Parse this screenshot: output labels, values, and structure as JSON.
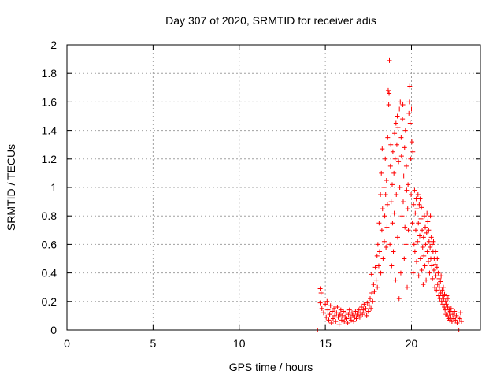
{
  "chart_data": {
    "type": "scatter",
    "title": "Day 307 of 2020, SRMTID for receiver adis",
    "xlabel": "GPS time / hours",
    "ylabel": "SRMTID / TECUs",
    "xlim": [
      0,
      24
    ],
    "ylim": [
      0,
      2
    ],
    "xticks": [
      0,
      5,
      10,
      15,
      20
    ],
    "xtick_labels": [
      "0",
      "5",
      "10",
      "15",
      "20"
    ],
    "yticks": [
      0,
      0.2,
      0.4,
      0.6,
      0.8,
      1,
      1.2,
      1.4,
      1.6,
      1.8,
      2
    ],
    "ytick_labels": [
      "0",
      "0.2",
      "0.4",
      "0.6",
      "0.8",
      "1",
      "1.2",
      "1.4",
      "1.6",
      "1.8",
      "2"
    ],
    "grid": true,
    "marker": "+",
    "series": [
      {
        "name": "adis",
        "color": "#ff0000",
        "points": [
          [
            14.55,
            0.0
          ],
          [
            22.75,
            0.0
          ],
          [
            14.7,
            0.29
          ],
          [
            14.75,
            0.26
          ],
          [
            14.7,
            0.19
          ],
          [
            14.8,
            0.15
          ],
          [
            14.9,
            0.12
          ],
          [
            15.0,
            0.18
          ],
          [
            15.05,
            0.09
          ],
          [
            15.1,
            0.2
          ],
          [
            15.15,
            0.14
          ],
          [
            15.2,
            0.07
          ],
          [
            15.25,
            0.11
          ],
          [
            15.3,
            0.17
          ],
          [
            15.35,
            0.05
          ],
          [
            15.4,
            0.13
          ],
          [
            15.45,
            0.08
          ],
          [
            15.5,
            0.15
          ],
          [
            15.55,
            0.1
          ],
          [
            15.6,
            0.06
          ],
          [
            15.65,
            0.12
          ],
          [
            15.7,
            0.16
          ],
          [
            15.75,
            0.09
          ],
          [
            15.8,
            0.04
          ],
          [
            15.85,
            0.11
          ],
          [
            15.9,
            0.14
          ],
          [
            15.95,
            0.07
          ],
          [
            16.0,
            0.1
          ],
          [
            16.05,
            0.13
          ],
          [
            16.1,
            0.06
          ],
          [
            16.15,
            0.09
          ],
          [
            16.2,
            0.12
          ],
          [
            16.25,
            0.08
          ],
          [
            16.3,
            0.05
          ],
          [
            16.35,
            0.11
          ],
          [
            16.4,
            0.14
          ],
          [
            16.45,
            0.09
          ],
          [
            16.5,
            0.07
          ],
          [
            16.55,
            0.12
          ],
          [
            16.6,
            0.1
          ],
          [
            16.65,
            0.06
          ],
          [
            16.7,
            0.09
          ],
          [
            16.75,
            0.13
          ],
          [
            16.8,
            0.08
          ],
          [
            16.85,
            0.11
          ],
          [
            16.9,
            0.1
          ],
          [
            16.95,
            0.14
          ],
          [
            17.0,
            0.09
          ],
          [
            17.05,
            0.12
          ],
          [
            17.1,
            0.16
          ],
          [
            17.15,
            0.11
          ],
          [
            17.2,
            0.14
          ],
          [
            17.25,
            0.18
          ],
          [
            17.3,
            0.12
          ],
          [
            17.35,
            0.15
          ],
          [
            17.4,
            0.1
          ],
          [
            17.45,
            0.19
          ],
          [
            17.5,
            0.13
          ],
          [
            17.55,
            0.17
          ],
          [
            17.6,
            0.22
          ],
          [
            17.65,
            0.15
          ],
          [
            17.68,
            0.39
          ],
          [
            17.7,
            0.26
          ],
          [
            17.75,
            0.2
          ],
          [
            17.8,
            0.32
          ],
          [
            17.85,
            0.27
          ],
          [
            17.9,
            0.44
          ],
          [
            17.95,
            0.35
          ],
          [
            18.0,
            0.52
          ],
          [
            18.02,
            0.3
          ],
          [
            18.05,
            0.6
          ],
          [
            18.1,
            0.45
          ],
          [
            18.12,
            0.75
          ],
          [
            18.15,
            0.55
          ],
          [
            18.2,
            0.95
          ],
          [
            18.22,
            0.4
          ],
          [
            18.25,
            1.1
          ],
          [
            18.28,
            0.7
          ],
          [
            18.3,
            1.27
          ],
          [
            18.32,
            0.85
          ],
          [
            18.35,
            0.5
          ],
          [
            18.4,
            1.0
          ],
          [
            18.42,
            0.62
          ],
          [
            18.45,
            0.8
          ],
          [
            18.48,
            1.2
          ],
          [
            18.5,
            0.95
          ],
          [
            18.52,
            0.58
          ],
          [
            18.55,
            1.05
          ],
          [
            18.58,
            0.72
          ],
          [
            18.6,
            0.88
          ],
          [
            18.62,
            1.35
          ],
          [
            18.65,
            1.68
          ],
          [
            18.68,
            1.58
          ],
          [
            18.7,
            1.66
          ],
          [
            18.72,
            1.89
          ],
          [
            18.75,
            0.6
          ],
          [
            18.78,
            1.15
          ],
          [
            18.8,
            1.3
          ],
          [
            18.82,
            0.9
          ],
          [
            18.85,
            0.45
          ],
          [
            18.88,
            1.02
          ],
          [
            18.9,
            0.75
          ],
          [
            18.92,
            1.25
          ],
          [
            18.95,
            0.55
          ],
          [
            18.98,
            1.1
          ],
          [
            19.0,
            0.82
          ],
          [
            19.02,
            1.38
          ],
          [
            19.05,
            1.2
          ],
          [
            19.08,
            0.35
          ],
          [
            19.1,
            1.45
          ],
          [
            19.12,
            0.95
          ],
          [
            19.15,
            1.3
          ],
          [
            19.18,
            1.5
          ],
          [
            19.2,
            0.65
          ],
          [
            19.22,
            1.42
          ],
          [
            19.25,
            1.18
          ],
          [
            19.28,
            0.22
          ],
          [
            19.3,
            1.55
          ],
          [
            19.32,
            1.0
          ],
          [
            19.35,
            1.6
          ],
          [
            19.38,
            0.4
          ],
          [
            19.4,
            1.35
          ],
          [
            19.42,
            1.22
          ],
          [
            19.45,
            0.8
          ],
          [
            19.48,
            1.48
          ],
          [
            19.5,
            1.58
          ],
          [
            19.52,
            0.9
          ],
          [
            19.55,
            1.08
          ],
          [
            19.58,
            0.5
          ],
          [
            19.6,
            1.28
          ],
          [
            19.62,
            0.72
          ],
          [
            19.65,
            1.4
          ],
          [
            19.68,
            0.6
          ],
          [
            19.7,
            1.15
          ],
          [
            19.72,
            0.98
          ],
          [
            19.75,
            0.3
          ],
          [
            19.78,
            0.85
          ],
          [
            19.8,
            1.02
          ],
          [
            19.82,
            0.7
          ],
          [
            19.85,
            1.52
          ],
          [
            19.88,
            1.6
          ],
          [
            19.9,
            1.71
          ],
          [
            19.92,
            1.45
          ],
          [
            19.95,
            1.2
          ],
          [
            19.98,
            0.95
          ],
          [
            20.0,
            1.55
          ],
          [
            20.02,
            1.32
          ],
          [
            20.05,
            0.75
          ],
          [
            20.08,
            1.25
          ],
          [
            20.1,
            0.4
          ],
          [
            20.12,
            0.88
          ],
          [
            20.15,
            0.6
          ],
          [
            20.18,
            0.98
          ],
          [
            20.2,
            0.55
          ],
          [
            20.22,
            0.82
          ],
          [
            20.25,
            0.7
          ],
          [
            20.28,
            0.92
          ],
          [
            20.3,
            0.48
          ],
          [
            20.32,
            0.85
          ],
          [
            20.35,
            0.62
          ],
          [
            20.38,
            0.95
          ],
          [
            20.4,
            0.75
          ],
          [
            20.42,
            0.38
          ],
          [
            20.45,
            0.88
          ],
          [
            20.48,
            0.66
          ],
          [
            20.5,
            0.92
          ],
          [
            20.52,
            0.5
          ],
          [
            20.55,
            0.78
          ],
          [
            20.58,
            0.86
          ],
          [
            20.6,
            0.42
          ],
          [
            20.62,
            0.7
          ],
          [
            20.65,
            0.58
          ],
          [
            20.68,
            0.32
          ],
          [
            20.7,
            0.65
          ],
          [
            20.72,
            0.52
          ],
          [
            20.75,
            0.8
          ],
          [
            20.78,
            0.45
          ],
          [
            20.8,
            0.72
          ],
          [
            20.82,
            0.6
          ],
          [
            20.85,
            0.35
          ],
          [
            20.88,
            0.68
          ],
          [
            20.9,
            0.82
          ],
          [
            20.92,
            0.55
          ],
          [
            20.95,
            0.76
          ],
          [
            20.98,
            0.48
          ],
          [
            21.0,
            0.7
          ],
          [
            21.02,
            0.62
          ],
          [
            21.05,
            0.4
          ],
          [
            21.08,
            0.58
          ],
          [
            21.1,
            0.8
          ],
          [
            21.12,
            0.5
          ],
          [
            21.15,
            0.65
          ],
          [
            21.18,
            0.45
          ],
          [
            21.2,
            0.6
          ],
          [
            21.22,
            0.36
          ],
          [
            21.25,
            0.55
          ],
          [
            21.28,
            0.62
          ],
          [
            21.3,
            0.42
          ],
          [
            21.32,
            0.5
          ],
          [
            21.35,
            0.3
          ],
          [
            21.38,
            0.46
          ],
          [
            21.4,
            0.55
          ],
          [
            21.42,
            0.38
          ],
          [
            21.45,
            0.28
          ],
          [
            21.48,
            0.44
          ],
          [
            21.5,
            0.5
          ],
          [
            21.52,
            0.32
          ],
          [
            21.55,
            0.4
          ],
          [
            21.58,
            0.24
          ],
          [
            21.6,
            0.36
          ],
          [
            21.62,
            0.3
          ],
          [
            21.65,
            0.22
          ],
          [
            21.68,
            0.34
          ],
          [
            21.7,
            0.26
          ],
          [
            21.72,
            0.38
          ],
          [
            21.75,
            0.2
          ],
          [
            21.78,
            0.28
          ],
          [
            21.8,
            0.24
          ],
          [
            21.82,
            0.18
          ],
          [
            21.85,
            0.3
          ],
          [
            21.88,
            0.22
          ],
          [
            21.9,
            0.16
          ],
          [
            21.92,
            0.25
          ],
          [
            21.95,
            0.14
          ],
          [
            21.98,
            0.2
          ],
          [
            22.0,
            0.11
          ],
          [
            22.02,
            0.18
          ],
          [
            22.05,
            0.24
          ],
          [
            22.08,
            0.1
          ],
          [
            22.1,
            0.16
          ],
          [
            22.12,
            0.22
          ],
          [
            22.15,
            0.08
          ],
          [
            22.18,
            0.14
          ],
          [
            22.2,
            0.12
          ],
          [
            22.22,
            0.07
          ],
          [
            22.25,
            0.13
          ],
          [
            22.28,
            0.09
          ],
          [
            22.3,
            0.15
          ],
          [
            22.35,
            0.06
          ],
          [
            22.4,
            0.11
          ],
          [
            22.45,
            0.08
          ],
          [
            22.5,
            0.13
          ],
          [
            22.55,
            0.07
          ],
          [
            22.6,
            0.1
          ],
          [
            22.65,
            0.05
          ],
          [
            22.7,
            0.09
          ],
          [
            22.8,
            0.08
          ],
          [
            22.85,
            0.12
          ],
          [
            22.9,
            0.06
          ]
        ]
      }
    ]
  }
}
